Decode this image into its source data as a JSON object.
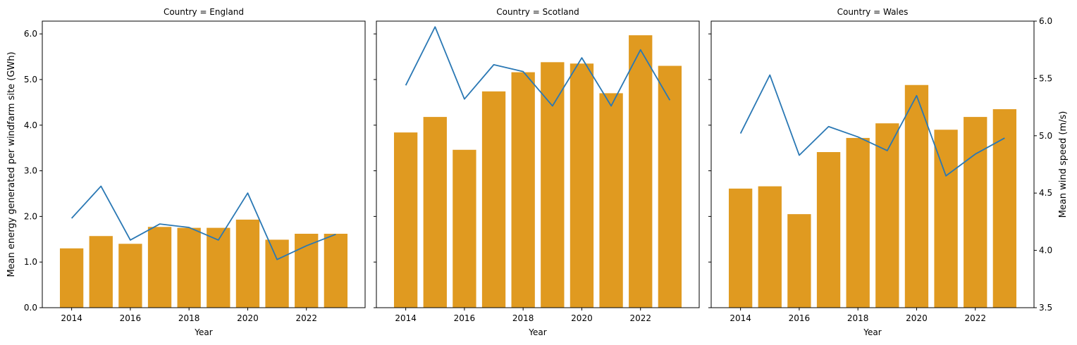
{
  "chart_data": {
    "type": "bar",
    "x_label": "Year",
    "y_label_left": "Mean energy generated per windfarm site (GWh)",
    "y_label_right": "Mean wind speed (m/s)",
    "years": [
      2014,
      2015,
      2016,
      2017,
      2018,
      2019,
      2020,
      2021,
      2022,
      2023
    ],
    "x_ticks": [
      "2014",
      "2016",
      "2018",
      "2020",
      "2022"
    ],
    "y_left": {
      "ylim": [
        0,
        6.28
      ],
      "ticks": [
        0.0,
        1.0,
        2.0,
        3.0,
        4.0,
        5.0,
        6.0
      ],
      "tick_labels": [
        "0.0",
        "1.0",
        "2.0",
        "3.0",
        "4.0",
        "5.0",
        "6.0"
      ]
    },
    "y_right": {
      "ylim": [
        3.5,
        6.0
      ],
      "ticks": [
        3.5,
        4.0,
        4.5,
        5.0,
        5.5,
        6.0
      ],
      "tick_labels": [
        "3.5",
        "4.0",
        "4.5",
        "5.0",
        "5.5",
        "6.0"
      ]
    },
    "colors": {
      "bar": "#e09a20",
      "line": "#2a78b4"
    },
    "panels": [
      {
        "title": "Country = England",
        "bar_values": [
          1.3,
          1.57,
          1.4,
          1.77,
          1.75,
          1.75,
          1.93,
          1.49,
          1.62,
          1.62
        ],
        "line_values": [
          4.28,
          4.56,
          4.09,
          4.23,
          4.2,
          4.09,
          4.5,
          3.92,
          4.04,
          4.14
        ]
      },
      {
        "title": "Country = Scotland",
        "bar_values": [
          3.84,
          4.18,
          3.46,
          4.74,
          5.16,
          5.38,
          5.35,
          4.7,
          5.97,
          5.3
        ],
        "line_values": [
          5.44,
          5.95,
          5.32,
          5.62,
          5.56,
          5.26,
          5.68,
          5.26,
          5.75,
          5.31
        ]
      },
      {
        "title": "Country = Wales",
        "bar_values": [
          2.61,
          2.66,
          2.05,
          3.41,
          3.72,
          4.04,
          4.88,
          3.9,
          4.18,
          4.35
        ],
        "line_values": [
          5.02,
          5.53,
          4.83,
          5.08,
          4.99,
          4.87,
          5.35,
          4.65,
          4.84,
          4.98
        ]
      }
    ]
  }
}
